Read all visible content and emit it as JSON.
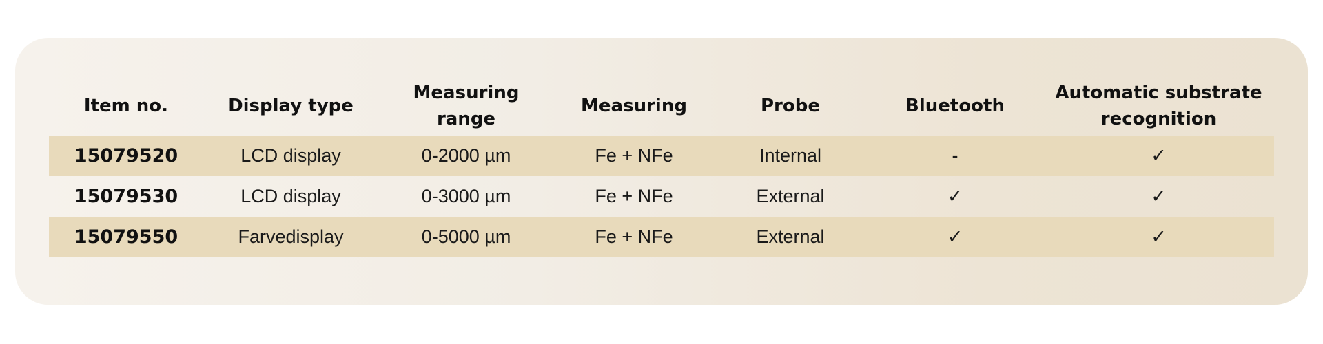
{
  "table": {
    "header": [
      "Item no.",
      "Display type",
      "Measuring range",
      "Measuring",
      "Probe",
      "Bluetooth",
      "Automatic substrate recognition"
    ],
    "rows": [
      [
        "15079520",
        "LCD display",
        "0-2000 µm",
        "Fe + NFe",
        "Internal",
        "-",
        "✓"
      ],
      [
        "15079530",
        "LCD display",
        "0-3000 µm",
        "Fe + NFe",
        "External",
        "✓",
        "✓"
      ],
      [
        "15079550",
        "Farvedisplay",
        "0-5000 µm",
        "Fe + NFe",
        "External",
        "✓",
        "✓"
      ]
    ]
  }
}
